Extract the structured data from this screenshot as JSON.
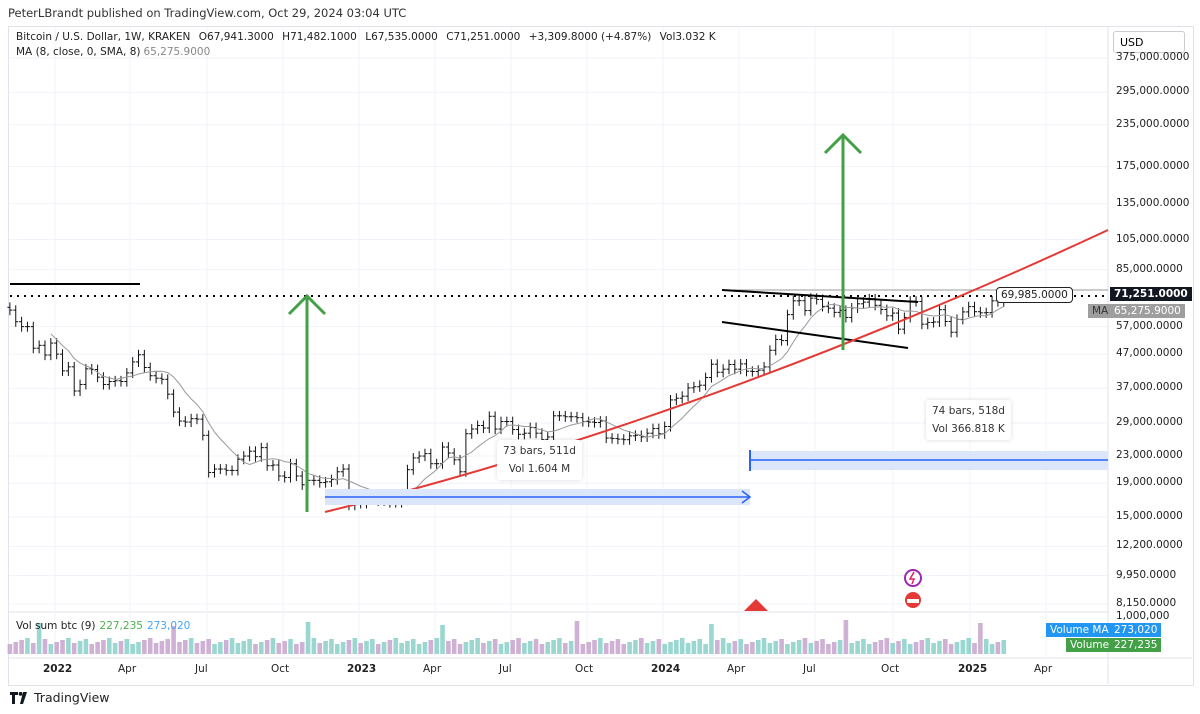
{
  "header": {
    "published": "PeterLBrandt published on TradingView.com, Oct 29, 2024 03:04 UTC",
    "symbol": "Bitcoin / U.S. Dollar, 1W, KRAKEN",
    "open": "O67,941.3000",
    "high": "H71,482.1000",
    "low": "L67,535.0000",
    "close": "C71,251.0000",
    "change": "+3,309.8000 (+4.87%)",
    "vol": "Vol3.032 K",
    "ma_label": "MA (8, close, 0, SMA, 8)",
    "ma_value": "65,275.9000"
  },
  "currency": "USD",
  "price_axis": {
    "ticks": [
      "375,000.0000",
      "295,000.0000",
      "235,000.0000",
      "175,000.0000",
      "135,000.0000",
      "105,000.0000",
      "85,000.0000",
      "57,000.0000",
      "47,000.0000",
      "37,000.0000",
      "29,000.0000",
      "23,000.0000",
      "19,000.0000",
      "15,000.0000",
      "12,200.0000",
      "9,950.0000",
      "8,150.0000",
      "1,000,000"
    ],
    "last_price": "71,251.0000",
    "ma_tag": "MA",
    "ma_price": "65,275.9000",
    "scale": "log"
  },
  "time_axis": {
    "ticks": [
      "2022",
      "Apr",
      "Jul",
      "Oct",
      "2023",
      "Apr",
      "Jul",
      "Oct",
      "2024",
      "Apr",
      "Jul",
      "Oct",
      "2025",
      "Apr"
    ]
  },
  "annotations": {
    "price_line_label": "69,985.0000",
    "range1": {
      "bars": "73 bars, 511d",
      "vol": "Vol 1.604 M"
    },
    "range2": {
      "bars": "74 bars, 518d",
      "vol": "Vol 366.818 K"
    }
  },
  "volume": {
    "legend": "Vol sum btc (9)",
    "value": "227,235",
    "ma_value": "273,020",
    "ma_tag": "Volume MA",
    "tag": "Volume"
  },
  "colors": {
    "up": "#26a69a",
    "down": "#ef5350",
    "arrow": "#43a047",
    "range": "#2962ff",
    "trend": "#e53935",
    "ma": "#999999"
  },
  "footer": {
    "brand": "TradingView"
  },
  "chart_data": {
    "type": "ohlc",
    "interval": "1W",
    "start": "2021-11-08",
    "closes": [
      64000,
      59000,
      57000,
      57000,
      49000,
      50000,
      46700,
      50800,
      47000,
      41800,
      43000,
      36300,
      38000,
      42400,
      42200,
      40000,
      38000,
      38800,
      39000,
      38800,
      41200,
      44500,
      46800,
      42800,
      40400,
      39700,
      39400,
      35500,
      31300,
      29400,
      29200,
      29900,
      29800,
      26600,
      20500,
      21000,
      21000,
      20800,
      20800,
      22500,
      23000,
      23800,
      22900,
      24400,
      21500,
      21600,
      20000,
      19800,
      21800,
      20000,
      18800,
      19400,
      19400,
      19100,
      19200,
      19500,
      20600,
      21000,
      16300,
      16700,
      16500,
      17000,
      17100,
      16800,
      16800,
      16600,
      16600,
      16900,
      20900,
      22700,
      23000,
      23400,
      21800,
      21800,
      24500,
      23500,
      22400,
      20600,
      26900,
      27800,
      28500,
      28000,
      30400,
      27800,
      29300,
      29300,
      27700,
      26800,
      27000,
      28100,
      27000,
      25800,
      26300,
      30500,
      30500,
      30300,
      30300,
      30100,
      29300,
      29200,
      29100,
      29400,
      26100,
      26000,
      25900,
      25800,
      26500,
      26600,
      26300,
      27000,
      27900,
      26900,
      28300,
      34100,
      34500,
      35000,
      37100,
      37400,
      37800,
      39900,
      43800,
      41400,
      42300,
      43700,
      42300,
      43900,
      41700,
      41600,
      42000,
      43000,
      48300,
      52100,
      51700,
      62000,
      68300,
      68400,
      63800,
      69600,
      69000,
      65700,
      64900,
      63000,
      63900,
      60800,
      65000,
      66900,
      67700,
      69300,
      66200,
      64300,
      61500,
      62700,
      56000,
      60800,
      68200,
      68000,
      58000,
      58700,
      58900,
      64200,
      59100,
      54800,
      60000,
      63200,
      65600,
      63300,
      62800,
      62900,
      68300,
      67941,
      71251
    ]
  }
}
